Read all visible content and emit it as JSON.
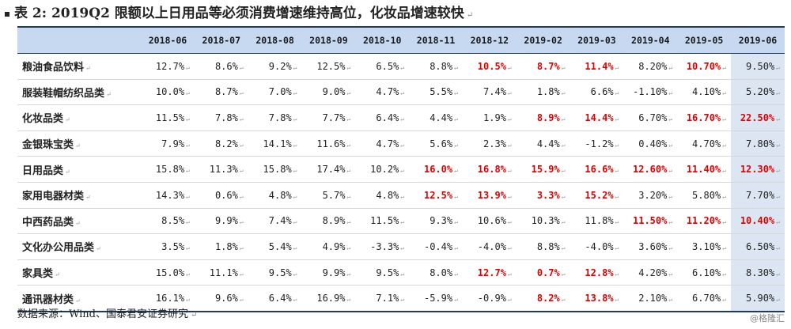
{
  "title": "表 2: 2019Q2 限额以上日用品等必须消费增速维持高位，化妆品增速较快",
  "para_mark": "↵",
  "columns": [
    "2018-06",
    "2018-07",
    "2018-08",
    "2018-09",
    "2018-10",
    "2018-11",
    "2018-12",
    "2019-02",
    "2019-03",
    "2019-04",
    "2019-05",
    "2019-06"
  ],
  "rows": [
    {
      "label": "粮油食品饮料",
      "values": [
        "12.7%",
        "8.6%",
        "9.2%",
        "12.5%",
        "6.5%",
        "8.8%",
        "10.5%",
        "8.7%",
        "11.4%",
        "8.20%",
        "10.70%",
        "9.50%"
      ],
      "highlight": [
        false,
        false,
        false,
        false,
        false,
        false,
        true,
        true,
        true,
        false,
        true,
        false
      ]
    },
    {
      "label": "服装鞋帽纺织品类",
      "values": [
        "10.0%",
        "8.7%",
        "7.0%",
        "9.0%",
        "4.7%",
        "5.5%",
        "7.4%",
        "1.8%",
        "6.6%",
        "-1.10%",
        "4.10%",
        "5.20%"
      ],
      "highlight": [
        false,
        false,
        false,
        false,
        false,
        false,
        false,
        false,
        false,
        false,
        false,
        false
      ]
    },
    {
      "label": "化妆品类",
      "values": [
        "11.5%",
        "7.8%",
        "7.8%",
        "7.7%",
        "6.4%",
        "4.4%",
        "1.9%",
        "8.9%",
        "14.4%",
        "6.70%",
        "16.70%",
        "22.50%"
      ],
      "highlight": [
        false,
        false,
        false,
        false,
        false,
        false,
        false,
        true,
        true,
        false,
        true,
        true
      ]
    },
    {
      "label": "金银珠宝类",
      "values": [
        "7.9%",
        "8.2%",
        "14.1%",
        "11.6%",
        "4.7%",
        "5.6%",
        "2.3%",
        "4.4%",
        "-1.2%",
        "0.40%",
        "4.70%",
        "7.80%"
      ],
      "highlight": [
        false,
        false,
        false,
        false,
        false,
        false,
        false,
        false,
        false,
        false,
        false,
        false
      ]
    },
    {
      "label": "日用品类",
      "values": [
        "15.8%",
        "11.3%",
        "15.8%",
        "17.4%",
        "10.2%",
        "16.0%",
        "16.8%",
        "15.9%",
        "16.6%",
        "12.60%",
        "11.40%",
        "12.30%"
      ],
      "highlight": [
        false,
        false,
        false,
        false,
        false,
        true,
        true,
        true,
        true,
        true,
        true,
        true
      ]
    },
    {
      "label": "家用电器材类",
      "values": [
        "14.3%",
        "0.6%",
        "4.8%",
        "5.7%",
        "4.8%",
        "12.5%",
        "13.9%",
        "3.3%",
        "15.2%",
        "3.20%",
        "5.80%",
        "7.70%"
      ],
      "highlight": [
        false,
        false,
        false,
        false,
        false,
        true,
        true,
        true,
        true,
        false,
        false,
        false
      ]
    },
    {
      "label": "中西药品类",
      "values": [
        "8.5%",
        "9.9%",
        "7.4%",
        "8.9%",
        "11.5%",
        "9.3%",
        "10.6%",
        "10.3%",
        "11.8%",
        "11.50%",
        "11.20%",
        "10.40%"
      ],
      "highlight": [
        false,
        false,
        false,
        false,
        false,
        false,
        false,
        false,
        false,
        true,
        true,
        true
      ]
    },
    {
      "label": "文化办公用品类",
      "values": [
        "3.5%",
        "1.8%",
        "5.4%",
        "4.9%",
        "-3.3%",
        "-0.4%",
        "-4.0%",
        "8.8%",
        "-4.0%",
        "3.60%",
        "3.10%",
        "6.50%"
      ],
      "highlight": [
        false,
        false,
        false,
        false,
        false,
        false,
        false,
        false,
        false,
        false,
        false,
        false
      ]
    },
    {
      "label": "家具类",
      "values": [
        "15.0%",
        "11.1%",
        "9.5%",
        "9.9%",
        "9.5%",
        "8.0%",
        "12.7%",
        "0.7%",
        "12.8%",
        "4.20%",
        "6.10%",
        "8.30%"
      ],
      "highlight": [
        false,
        false,
        false,
        false,
        false,
        false,
        true,
        true,
        true,
        false,
        false,
        false
      ]
    },
    {
      "label": "通讯器材类",
      "values": [
        "16.1%",
        "9.6%",
        "6.4%",
        "16.9%",
        "7.1%",
        "-5.9%",
        "-0.9%",
        "8.2%",
        "13.8%",
        "2.10%",
        "6.70%",
        "5.90%"
      ],
      "highlight": [
        false,
        false,
        false,
        false,
        false,
        false,
        false,
        true,
        true,
        false,
        false,
        false
      ]
    }
  ],
  "source": "数据来源：Wind、国泰君安证券研究",
  "watermark": "@格隆汇",
  "colors": {
    "header_bg": "#c6d9f1",
    "highlight_text": "#e00000",
    "rule": "#1f3864",
    "last_col_bg": "#dce6f2"
  }
}
